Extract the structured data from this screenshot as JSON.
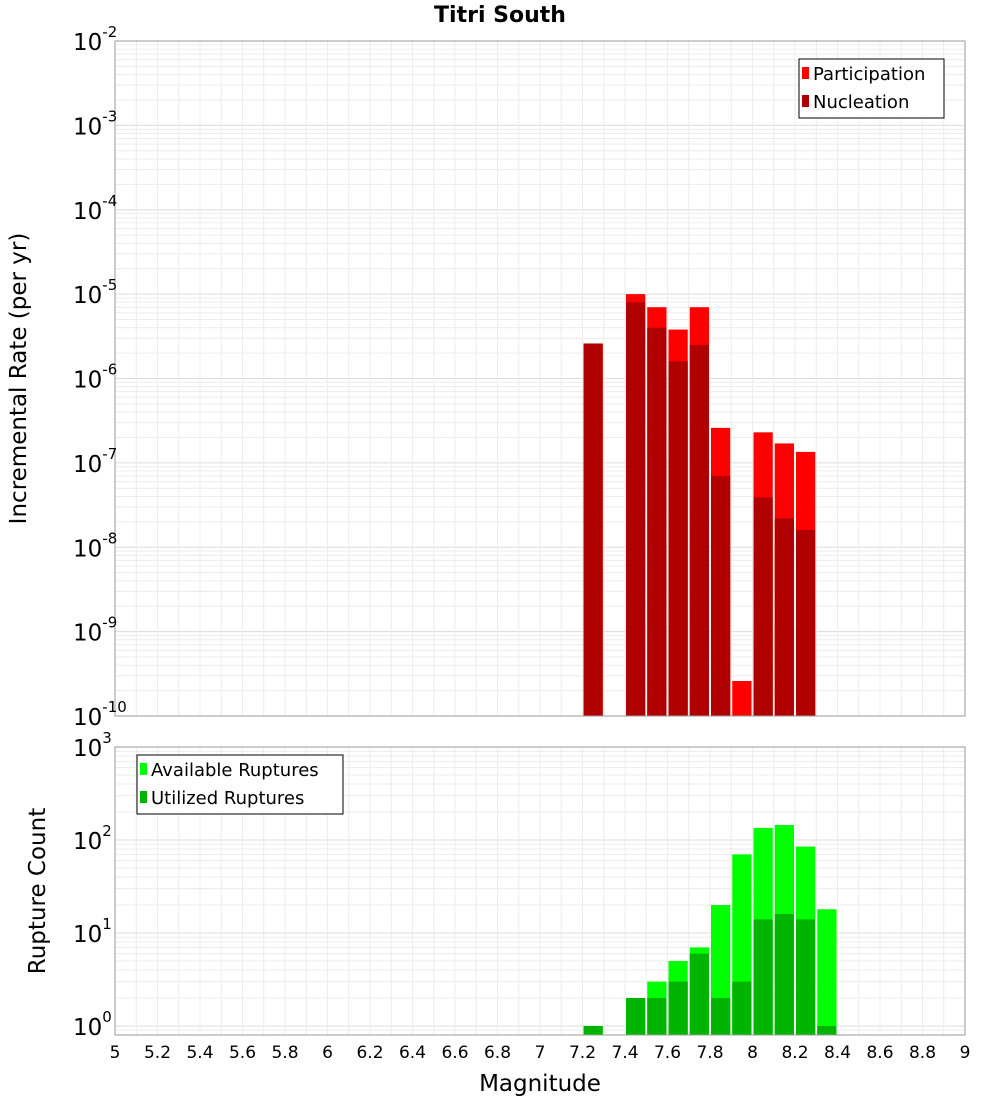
{
  "chart_data": [
    {
      "type": "bar",
      "title": "Titri South",
      "ylabel": "Incremental Rate (per yr)",
      "xlabel": "",
      "yscale": "log",
      "ylim": [
        1e-10,
        0.01
      ],
      "xlim": [
        5,
        9
      ],
      "grid": true,
      "legend_placement": "top-right",
      "x": [
        7.25,
        7.45,
        7.55,
        7.65,
        7.75,
        7.85,
        7.95,
        8.05,
        8.15,
        8.25
      ],
      "series": [
        {
          "name": "Participation",
          "color": "#ff0000",
          "values": [
            2.6e-06,
            1e-05,
            7e-06,
            3.8e-06,
            7e-06,
            2.6e-07,
            2.6e-10,
            2.3e-07,
            1.7e-07,
            1.35e-07
          ]
        },
        {
          "name": "Nucleation",
          "color": "#b00000",
          "values": [
            2.6e-06,
            8e-06,
            4e-06,
            1.6e-06,
            2.5e-06,
            7e-08,
            null,
            3.9e-08,
            2.2e-08,
            1.6e-08
          ]
        }
      ],
      "y_ticks": [
        {
          "base": "10",
          "exp": "-2"
        },
        {
          "base": "10",
          "exp": "-3"
        },
        {
          "base": "10",
          "exp": "-4"
        },
        {
          "base": "10",
          "exp": "-5"
        },
        {
          "base": "10",
          "exp": "-6"
        },
        {
          "base": "10",
          "exp": "-7"
        },
        {
          "base": "10",
          "exp": "-8"
        },
        {
          "base": "10",
          "exp": "-9"
        },
        {
          "base": "10",
          "exp": "-10"
        }
      ]
    },
    {
      "type": "bar",
      "title": "",
      "ylabel": "Rupture Count",
      "xlabel": "Magnitude",
      "yscale": "log",
      "ylim": [
        0.8,
        1000
      ],
      "xlim": [
        5,
        9
      ],
      "grid": true,
      "legend_placement": "top-left",
      "x": [
        7.25,
        7.45,
        7.55,
        7.65,
        7.75,
        7.85,
        7.95,
        8.05,
        8.15,
        8.25,
        8.35
      ],
      "series": [
        {
          "name": "Available Ruptures",
          "color": "#00ff00",
          "values": [
            1,
            2,
            3,
            5,
            7,
            20,
            70,
            135,
            145,
            85,
            18
          ]
        },
        {
          "name": "Utilized Ruptures",
          "color": "#00b400",
          "values": [
            1,
            2,
            2,
            3,
            6,
            2,
            3,
            14,
            16,
            14,
            1
          ]
        }
      ],
      "y_ticks": [
        {
          "base": "10",
          "exp": "3"
        },
        {
          "base": "10",
          "exp": "2"
        },
        {
          "base": "10",
          "exp": "1"
        },
        {
          "base": "10",
          "exp": "0"
        }
      ],
      "x_ticks": [
        "5",
        "5.2",
        "5.4",
        "5.6",
        "5.8",
        "6",
        "6.2",
        "6.4",
        "6.6",
        "6.8",
        "7",
        "7.2",
        "7.4",
        "7.6",
        "7.8",
        "8",
        "8.2",
        "8.4",
        "8.6",
        "8.8",
        "9"
      ]
    }
  ]
}
